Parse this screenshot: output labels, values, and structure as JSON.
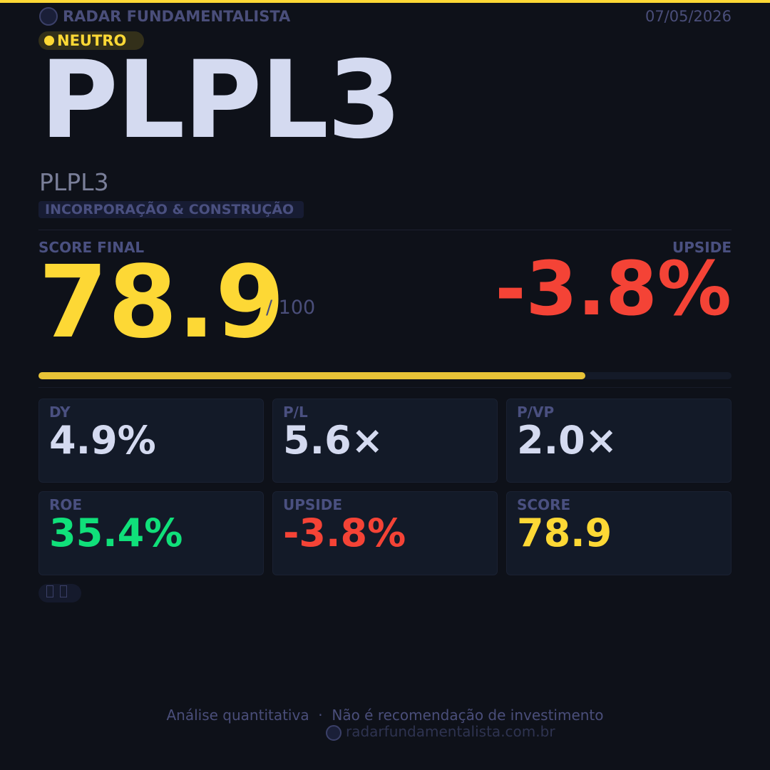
{
  "header": {
    "brand": "RADAR FUNDAMENTALISTA",
    "date": "07/05/2026"
  },
  "badge": "NEUTRO",
  "ticker": "PLPL3",
  "company": "PLPL3",
  "sector": "INCORPORAÇÃO & CONSTRUÇÃO",
  "score": {
    "label": "SCORE FINAL",
    "value": 78.9,
    "max": 100,
    "max_label": "/ 100"
  },
  "upside": {
    "label": "UPSIDE",
    "value": "-3.8%"
  },
  "metrics": [
    {
      "label": "DY",
      "value": "4.9%"
    },
    {
      "label": "P/L",
      "value": "5.6×"
    },
    {
      "label": "P/VP",
      "value": "2.0×"
    },
    {
      "label": "ROE",
      "value": "35.4%"
    },
    {
      "label": "UPSIDE",
      "value": "-3.8%"
    },
    {
      "label": "SCORE",
      "value": "78.9"
    }
  ],
  "footer": {
    "disclaimer": "Análise quantitativa  ·  Não é recomendação de investimento",
    "site": "radarfundamentalista.com.br"
  }
}
